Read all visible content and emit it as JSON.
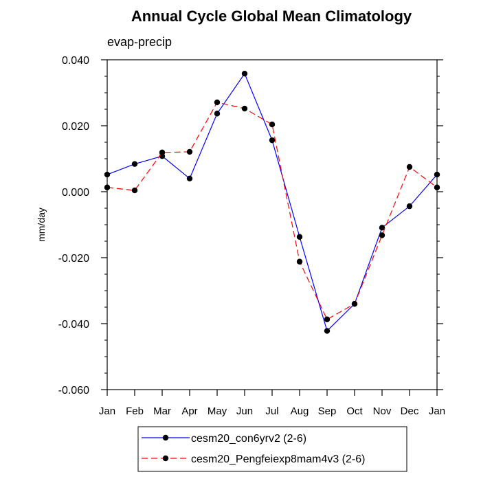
{
  "chart_data": {
    "type": "line",
    "title": "Annual Cycle Global Mean Climatology",
    "subtitle": "evap-precip",
    "xlabel": "",
    "ylabel": "mm/day",
    "categories": [
      "Jan",
      "Feb",
      "Mar",
      "Apr",
      "May",
      "Jun",
      "Jul",
      "Aug",
      "Sep",
      "Oct",
      "Nov",
      "Dec",
      "Jan"
    ],
    "ylim": [
      -0.06,
      0.04
    ],
    "yticks": [
      -0.06,
      -0.04,
      -0.02,
      0.0,
      0.02,
      0.04
    ],
    "ytick_labels": [
      "-0.060",
      "-0.040",
      "-0.020",
      "0.000",
      "0.020",
      "0.040"
    ],
    "yminor_step": 0.005,
    "grid": false,
    "legend_position": "bottom-center",
    "series": [
      {
        "name": "cesm20_con6yrv2 (2-6)",
        "color": "#0000ff",
        "dash": "solid",
        "values": [
          0.0052,
          0.0084,
          0.0108,
          0.004,
          0.0237,
          0.0358,
          0.0156,
          -0.0137,
          -0.0422,
          -0.034,
          -0.0109,
          -0.0044,
          0.0052
        ]
      },
      {
        "name": "cesm20_Pengfeiexp8mam4v3 (2-6)",
        "color": "#ff0000",
        "dash": "dashed",
        "values": [
          0.0013,
          0.0004,
          0.0119,
          0.0121,
          0.0271,
          0.0252,
          0.0204,
          -0.0212,
          -0.0387,
          -0.034,
          -0.0132,
          0.0075,
          0.0013
        ]
      }
    ]
  }
}
